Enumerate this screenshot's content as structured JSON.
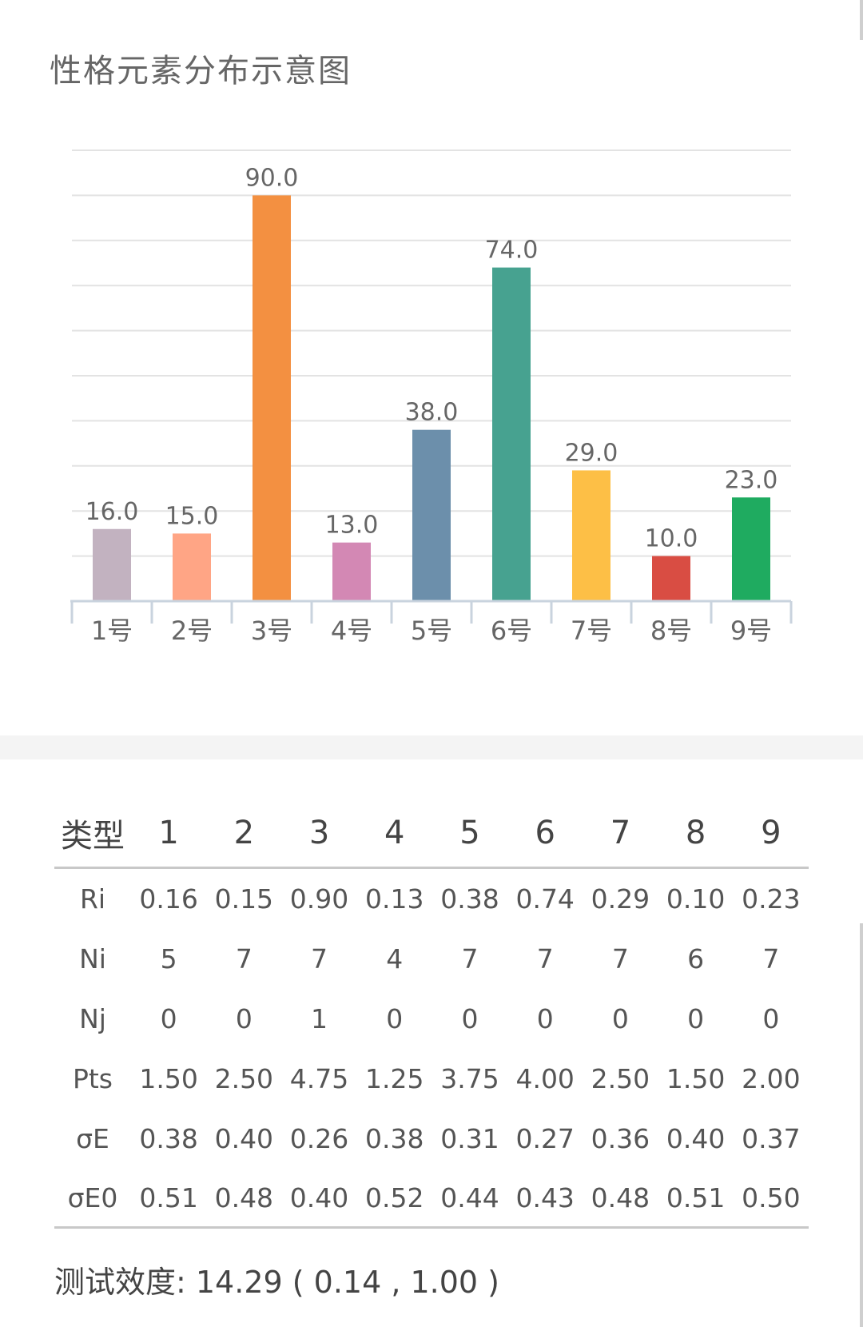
{
  "chart_data": {
    "type": "bar",
    "title": "性格元素分布示意图",
    "categories": [
      "1号",
      "2号",
      "3号",
      "4号",
      "5号",
      "6号",
      "7号",
      "8号",
      "9号"
    ],
    "values": [
      16.0,
      15.0,
      90.0,
      13.0,
      38.0,
      74.0,
      29.0,
      10.0,
      23.0
    ],
    "value_labels": [
      "16.0",
      "15.0",
      "90.0",
      "13.0",
      "38.0",
      "74.0",
      "29.0",
      "10.0",
      "23.0"
    ],
    "colors": [
      "#c2b2c0",
      "#ffa585",
      "#f39041",
      "#d388b4",
      "#6c8fab",
      "#47a290",
      "#fdbf46",
      "#d94d43",
      "#1fab60"
    ],
    "ylim": [
      0,
      100
    ],
    "grid": true,
    "legend": "none"
  },
  "table": {
    "header": [
      "类型",
      "1",
      "2",
      "3",
      "4",
      "5",
      "6",
      "7",
      "8",
      "9"
    ],
    "rows": [
      [
        "Ri",
        "0.16",
        "0.15",
        "0.90",
        "0.13",
        "0.38",
        "0.74",
        "0.29",
        "0.10",
        "0.23"
      ],
      [
        "Ni",
        "5",
        "7",
        "7",
        "4",
        "7",
        "7",
        "7",
        "6",
        "7"
      ],
      [
        "Nj",
        "0",
        "0",
        "1",
        "0",
        "0",
        "0",
        "0",
        "0",
        "0"
      ],
      [
        "Pts",
        "1.50",
        "2.50",
        "4.75",
        "1.25",
        "3.75",
        "4.00",
        "2.50",
        "1.50",
        "2.00"
      ],
      [
        "σE",
        "0.38",
        "0.40",
        "0.26",
        "0.38",
        "0.31",
        "0.27",
        "0.36",
        "0.40",
        "0.37"
      ],
      [
        "σE0",
        "0.51",
        "0.48",
        "0.40",
        "0.52",
        "0.44",
        "0.43",
        "0.48",
        "0.51",
        "0.50"
      ]
    ]
  },
  "summary": "测试效度: 14.29 ( 0.14 , 1.00 )"
}
